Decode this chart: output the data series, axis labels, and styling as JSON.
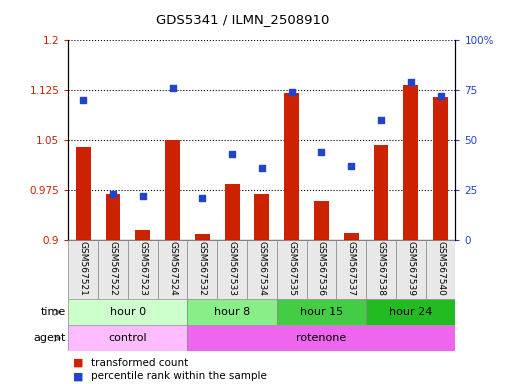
{
  "title": "GDS5341 / ILMN_2508910",
  "samples": [
    "GSM567521",
    "GSM567522",
    "GSM567523",
    "GSM567524",
    "GSM567532",
    "GSM567533",
    "GSM567534",
    "GSM567535",
    "GSM567536",
    "GSM567537",
    "GSM567538",
    "GSM567539",
    "GSM567540"
  ],
  "bar_values": [
    1.04,
    0.968,
    0.915,
    1.05,
    0.908,
    0.984,
    0.968,
    1.12,
    0.958,
    0.91,
    1.042,
    1.132,
    1.115
  ],
  "dot_values": [
    70,
    23,
    22,
    76,
    21,
    43,
    36,
    74,
    44,
    37,
    60,
    79,
    72
  ],
  "ylim_left": [
    0.9,
    1.2
  ],
  "ylim_right": [
    0,
    100
  ],
  "yticks_left": [
    0.9,
    0.975,
    1.05,
    1.125,
    1.2
  ],
  "yticks_right": [
    0,
    25,
    50,
    75,
    100
  ],
  "ytick_labels_left": [
    "0.9",
    "0.975",
    "1.05",
    "1.125",
    "1.2"
  ],
  "ytick_labels_right": [
    "0",
    "25",
    "50",
    "75",
    "100%"
  ],
  "bar_color": "#cc2200",
  "dot_color": "#2244cc",
  "bar_bottom": 0.9,
  "time_groups": [
    {
      "label": "hour 0",
      "start": 0,
      "end": 4,
      "color": "#ccffcc"
    },
    {
      "label": "hour 8",
      "start": 4,
      "end": 7,
      "color": "#88ee88"
    },
    {
      "label": "hour 15",
      "start": 7,
      "end": 10,
      "color": "#44cc44"
    },
    {
      "label": "hour 24",
      "start": 10,
      "end": 13,
      "color": "#22bb22"
    }
  ],
  "agent_groups": [
    {
      "label": "control",
      "start": 0,
      "end": 4,
      "color": "#ffbbff"
    },
    {
      "label": "rotenone",
      "start": 4,
      "end": 13,
      "color": "#ee66ee"
    }
  ],
  "legend_bar_label": "transformed count",
  "legend_dot_label": "percentile rank within the sample",
  "grid_color": "#000000",
  "tick_label_color_left": "#cc2200",
  "tick_label_color_right": "#2244cc",
  "time_label": "time",
  "agent_label": "agent"
}
